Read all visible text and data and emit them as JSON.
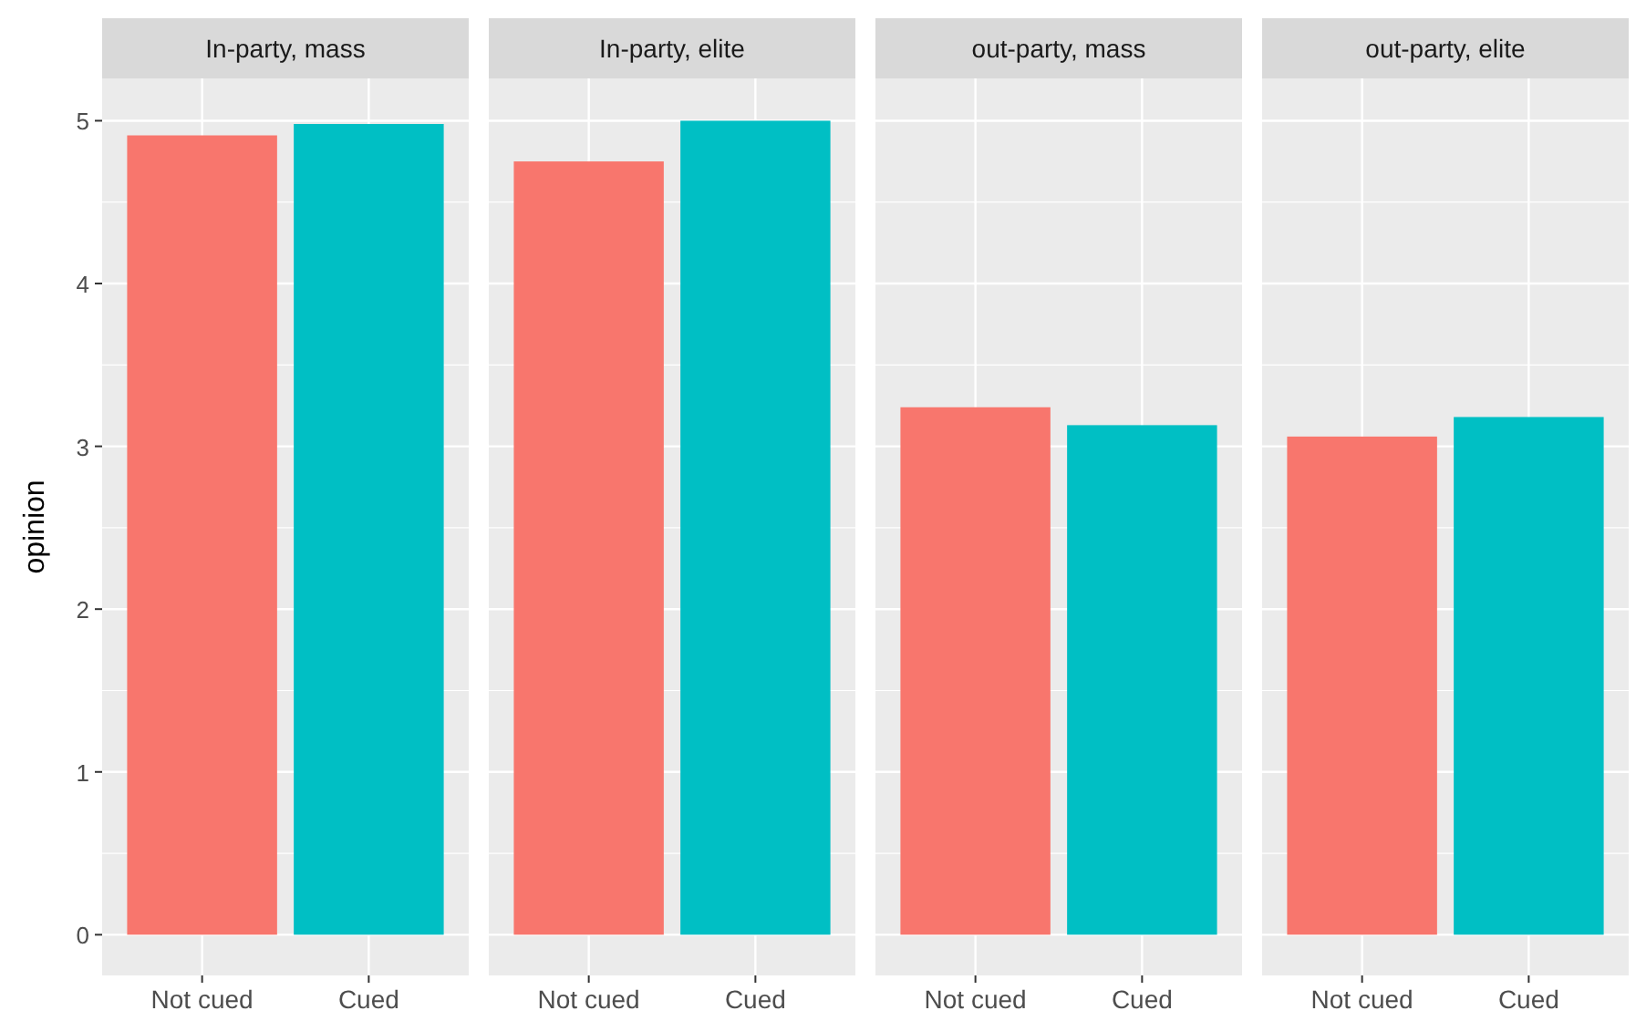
{
  "chart_data": [
    {
      "type": "bar",
      "title": "In-party, mass",
      "ylabel": "opinion",
      "categories": [
        "Not cued",
        "Cued"
      ],
      "values": [
        4.91,
        4.98
      ],
      "colors": [
        "#f8766d",
        "#00bfc4"
      ],
      "ylim": [
        -0.25,
        5.26
      ],
      "yticks": [
        0,
        1,
        2,
        3,
        4,
        5
      ],
      "grid": true
    },
    {
      "type": "bar",
      "title": "In-party, elite",
      "categories": [
        "Not cued",
        "Cued"
      ],
      "values": [
        4.75,
        5.0
      ],
      "colors": [
        "#f8766d",
        "#00bfc4"
      ],
      "ylim": [
        -0.25,
        5.26
      ],
      "yticks": [
        0,
        1,
        2,
        3,
        4,
        5
      ],
      "grid": true,
      "tick_labels": "x"
    },
    {
      "type": "bar",
      "title": "out-party, mass",
      "categories": [
        "Not cued",
        "Cued"
      ],
      "values": [
        3.24,
        3.13
      ],
      "colors": [
        "#f8766d",
        "#00bfc4"
      ],
      "ylim": [
        -0.25,
        5.26
      ],
      "yticks": [
        0,
        1,
        2,
        3,
        4,
        5
      ],
      "grid": true,
      "tick_labels": "x"
    },
    {
      "type": "bar",
      "title": "out-party, elite",
      "categories": [
        "Not cued",
        "Cued"
      ],
      "values": [
        3.06,
        3.18
      ],
      "colors": [
        "#f8766d",
        "#00bfc4"
      ],
      "ylim": [
        -0.25,
        5.26
      ],
      "yticks": [
        0,
        1,
        2,
        3,
        4,
        5
      ],
      "grid": true,
      "tick_labels": "x"
    }
  ]
}
